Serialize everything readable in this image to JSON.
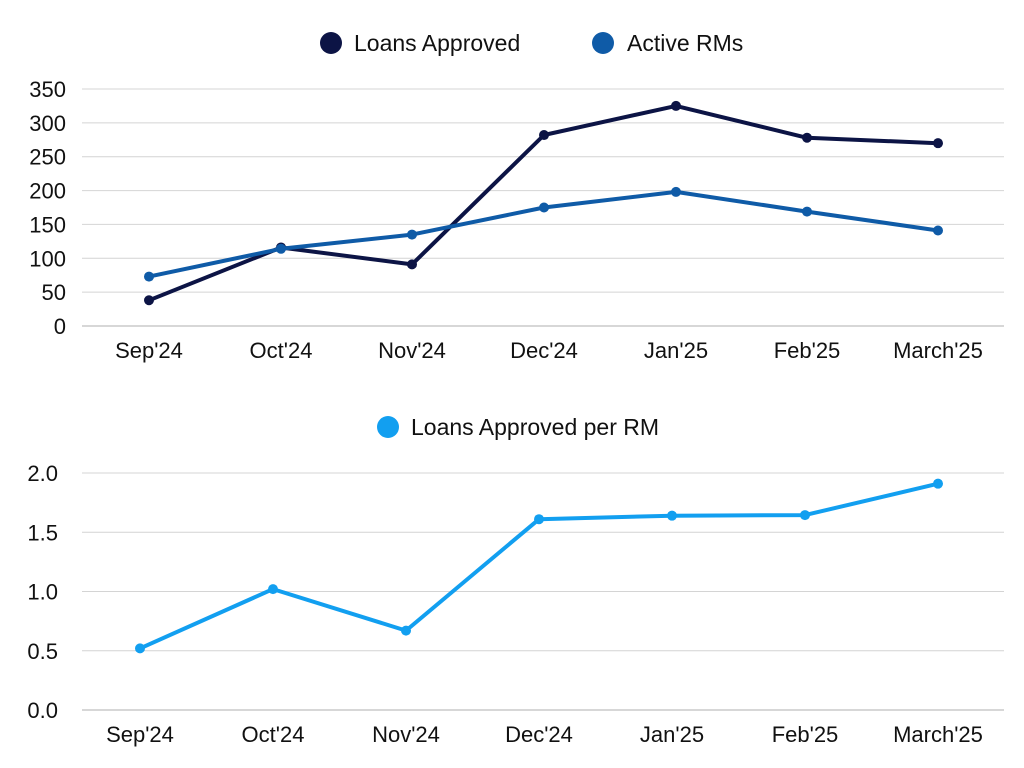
{
  "chart_data": [
    {
      "type": "line",
      "categories": [
        "Sep'24",
        "Oct'24",
        "Nov'24",
        "Dec'24",
        "Jan'25",
        "Feb'25",
        "March'25"
      ],
      "series": [
        {
          "name": "Loans Approved",
          "values": [
            38,
            116,
            91,
            282,
            325,
            278,
            270
          ],
          "color": "#0c1445"
        },
        {
          "name": "Active RMs",
          "values": [
            73,
            114,
            135,
            175,
            198,
            169,
            141
          ],
          "color": "#0f5ba7"
        }
      ],
      "ylim": [
        0,
        350
      ],
      "yticks": [
        "0",
        "50",
        "100",
        "150",
        "200",
        "250",
        "300",
        "350"
      ],
      "ytick_values": [
        0,
        50,
        100,
        150,
        200,
        250,
        300,
        350
      ],
      "grid": true,
      "legend": "top-center"
    },
    {
      "type": "line",
      "categories": [
        "Sep'24",
        "Oct'24",
        "Nov'24",
        "Dec'24",
        "Jan'25",
        "Feb'25",
        "March'25"
      ],
      "series": [
        {
          "name": "Loans Approved per RM",
          "values": [
            0.52,
            1.02,
            0.67,
            1.61,
            1.64,
            1.645,
            1.91
          ],
          "color": "#129ff0"
        }
      ],
      "ylim": [
        0,
        2.0
      ],
      "yticks": [
        "0.0",
        "0.5",
        "1.0",
        "1.5",
        "2.0"
      ],
      "ytick_values": [
        0,
        0.5,
        1.0,
        1.5,
        2.0
      ],
      "grid": true,
      "legend": "top-center"
    }
  ]
}
